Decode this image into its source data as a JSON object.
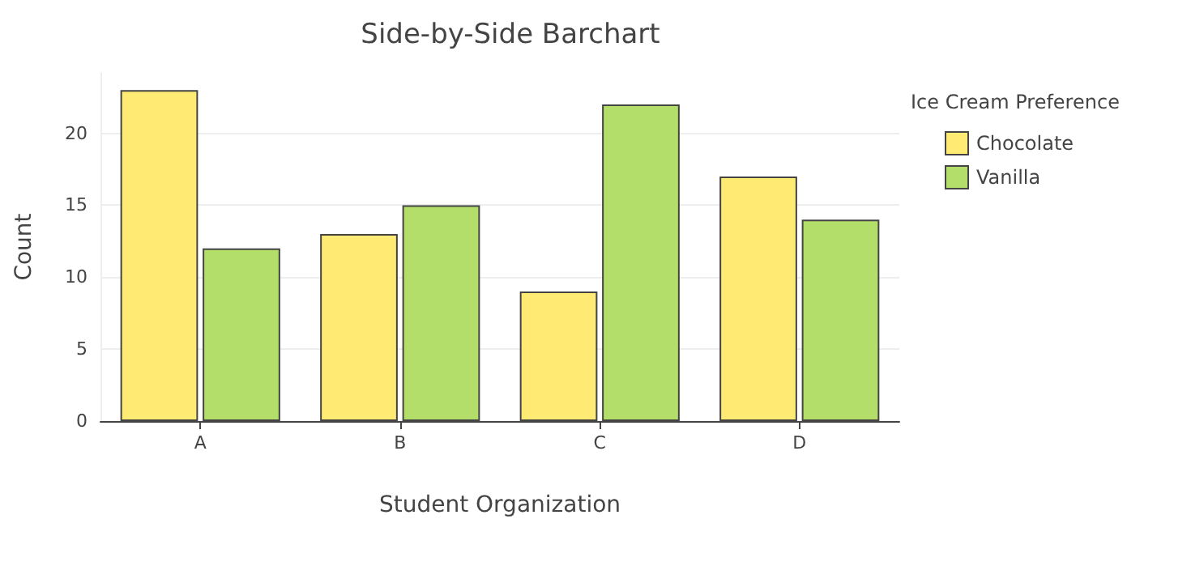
{
  "chart_data": {
    "type": "bar",
    "title": "Side-by-Side Barchart",
    "xlabel": "Student Organization",
    "ylabel": "Count",
    "legend_title": "Ice Cream Preference",
    "categories": [
      "A",
      "B",
      "C",
      "D"
    ],
    "series": [
      {
        "name": "Chocolate",
        "color": "#ffeb73",
        "values": [
          23,
          13,
          9,
          17
        ]
      },
      {
        "name": "Vanilla",
        "color": "#b3de69",
        "values": [
          12,
          15,
          22,
          14
        ]
      }
    ],
    "ylim": [
      0,
      24.2
    ],
    "yticks": [
      0,
      5,
      10,
      15,
      20
    ],
    "grid": "y",
    "legend": "top right"
  }
}
